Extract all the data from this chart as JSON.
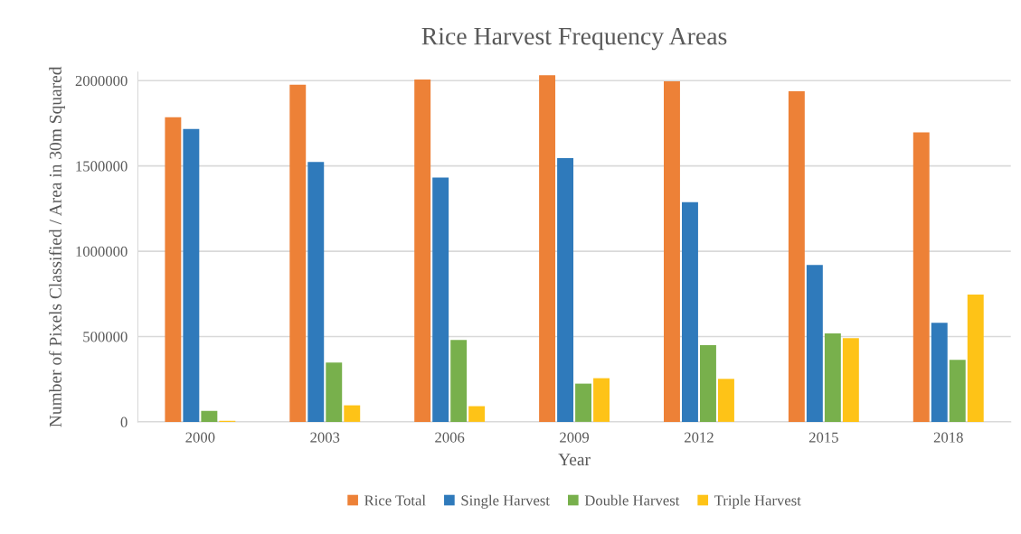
{
  "chart_data": {
    "type": "bar",
    "title": "Rice Harvest Frequency Areas",
    "xlabel": "Year",
    "ylabel": "Number of Pixels Classified / Area in 30m Squared",
    "categories": [
      "2000",
      "2003",
      "2006",
      "2009",
      "2012",
      "2015",
      "2018"
    ],
    "series": [
      {
        "name": "Rice Total",
        "color": "#ed8137",
        "values": [
          1785000,
          1976000,
          2007000,
          2032000,
          1996000,
          1938000,
          1697000
        ]
      },
      {
        "name": "Single Harvest",
        "color": "#2f7abb",
        "values": [
          1716000,
          1523000,
          1432000,
          1546000,
          1288000,
          920000,
          581000
        ]
      },
      {
        "name": "Double Harvest",
        "color": "#78b04c",
        "values": [
          64000,
          348000,
          480000,
          224000,
          449000,
          518000,
          363000
        ]
      },
      {
        "name": "Triple Harvest",
        "color": "#fec317",
        "values": [
          6000,
          97000,
          92000,
          256000,
          252000,
          490000,
          746000
        ]
      }
    ],
    "ylim": [
      0,
      2050000
    ],
    "yticks": [
      0,
      500000,
      1000000,
      1500000,
      2000000
    ],
    "grid": "y",
    "legend": "bottom"
  }
}
